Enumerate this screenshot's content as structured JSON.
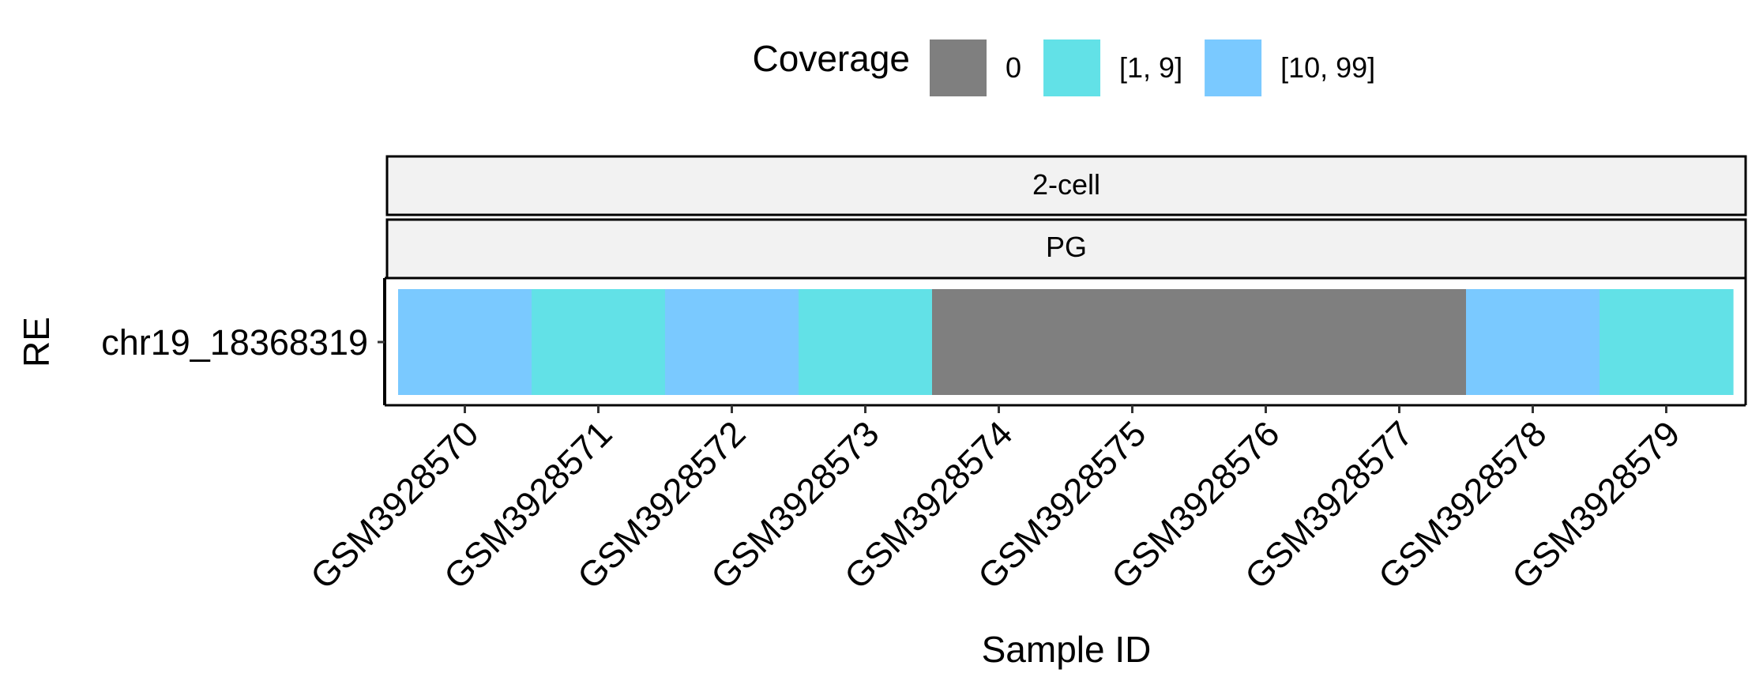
{
  "chart_data": {
    "type": "heatmap",
    "legend": {
      "title": "Coverage",
      "placement": "top",
      "entries": [
        {
          "label": "0",
          "color": "#7f7f7f"
        },
        {
          "label": "[1, 9]",
          "color": "#62e1e7"
        },
        {
          "label": "[10, 99]",
          "color": "#7ac9ff"
        }
      ]
    },
    "facets": [
      "2-cell",
      "PG"
    ],
    "xlabel": "Sample ID",
    "ylabel": "RE",
    "y_categories": [
      "chr19_18368319"
    ],
    "x_categories": [
      "GSM3928570",
      "GSM3928571",
      "GSM3928572",
      "GSM3928573",
      "GSM3928574",
      "GSM3928575",
      "GSM3928576",
      "GSM3928577",
      "GSM3928578",
      "GSM3928579"
    ],
    "values": [
      "[10, 99]",
      "[1, 9]",
      "[10, 99]",
      "[1, 9]",
      "0",
      "0",
      "0",
      "0",
      "[10, 99]",
      "[1, 9]"
    ]
  }
}
